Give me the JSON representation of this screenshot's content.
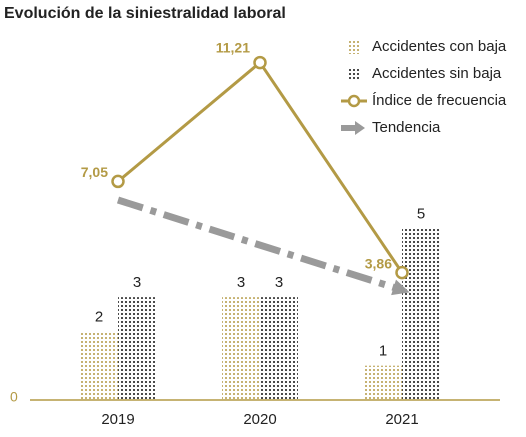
{
  "chart_data": {
    "type": "bar",
    "title": "Evolución de la siniestralidad laboral",
    "categories": [
      "2019",
      "2020",
      "2021"
    ],
    "ylim": [
      0,
      10.5
    ],
    "yticks": [
      0
    ],
    "y2lim": [
      -0.6,
      12
    ],
    "series": [
      {
        "name": "Accidentes con baja",
        "color": "#b39a45",
        "values": [
          2,
          3,
          1
        ]
      },
      {
        "name": "Accidentes sin baja",
        "color": "#111111",
        "values": [
          3,
          3,
          5
        ]
      },
      {
        "name": "Índice de frecuencia",
        "color": "#b39a45",
        "axis": "y2",
        "values": [
          7.05,
          11.21,
          3.86
        ],
        "value_labels": [
          "7,05",
          "11,21",
          "3,86"
        ]
      },
      {
        "name": "Tendencia",
        "color": "#9a9a9a",
        "axis": "y2",
        "values": [
          6.4,
          4.82,
          3.25
        ]
      }
    ]
  }
}
